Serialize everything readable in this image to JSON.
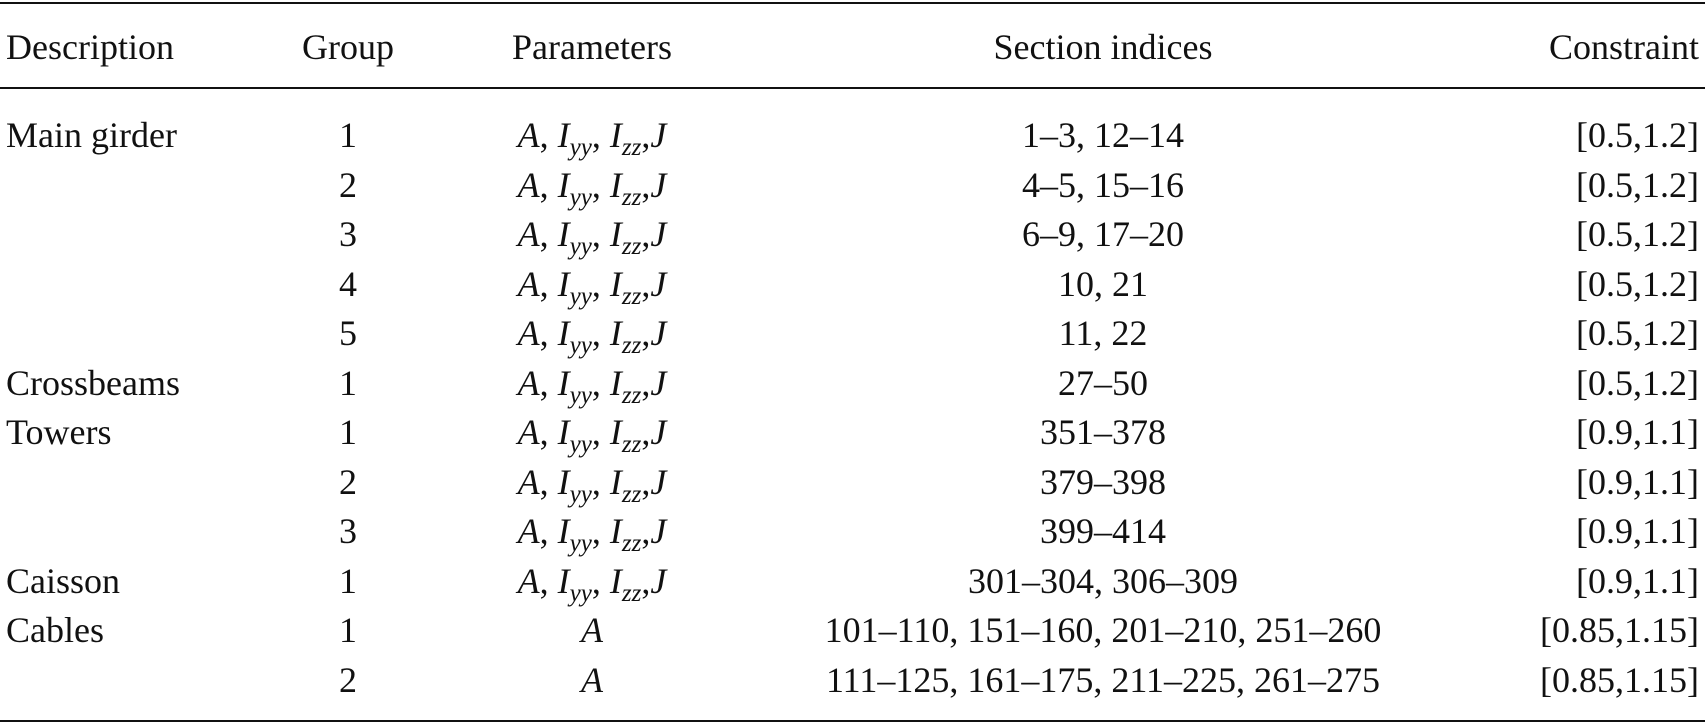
{
  "table": {
    "header": [
      "Description",
      "Group",
      "Parameters",
      "Section indices",
      "Constraint"
    ],
    "rows": [
      {
        "description": "Main girder",
        "group": 1,
        "parameters": [
          {
            "symbol": "A"
          },
          {
            "symbol": "I",
            "subscript": "yy"
          },
          {
            "symbol": "I",
            "subscript": "zz"
          },
          {
            "symbol": "J"
          }
        ],
        "sections": "1–3, 12–14",
        "constraint": "[0.5,1.2]"
      },
      {
        "group": 2,
        "parameters": [
          {
            "symbol": "A"
          },
          {
            "symbol": "I",
            "subscript": "yy"
          },
          {
            "symbol": "I",
            "subscript": "zz"
          },
          {
            "symbol": "J"
          }
        ],
        "sections": "4–5, 15–16",
        "constraint": "[0.5,1.2]"
      },
      {
        "group": 3,
        "parameters": [
          {
            "symbol": "A"
          },
          {
            "symbol": "I",
            "subscript": "yy"
          },
          {
            "symbol": "I",
            "subscript": "zz"
          },
          {
            "symbol": "J"
          }
        ],
        "sections": "6–9, 17–20",
        "constraint": "[0.5,1.2]"
      },
      {
        "group": 4,
        "parameters": [
          {
            "symbol": "A"
          },
          {
            "symbol": "I",
            "subscript": "yy"
          },
          {
            "symbol": "I",
            "subscript": "zz"
          },
          {
            "symbol": "J"
          }
        ],
        "sections": "10, 21",
        "constraint": "[0.5,1.2]"
      },
      {
        "group": 5,
        "parameters": [
          {
            "symbol": "A"
          },
          {
            "symbol": "I",
            "subscript": "yy"
          },
          {
            "symbol": "I",
            "subscript": "zz"
          },
          {
            "symbol": "J"
          }
        ],
        "sections": "11, 22",
        "constraint": "[0.5,1.2]"
      },
      {
        "description": "Crossbeams",
        "group": 1,
        "parameters": [
          {
            "symbol": "A"
          },
          {
            "symbol": "I",
            "subscript": "yy"
          },
          {
            "symbol": "I",
            "subscript": "zz"
          },
          {
            "symbol": "J"
          }
        ],
        "sections": "27–50",
        "constraint": "[0.5,1.2]"
      },
      {
        "description": "Towers",
        "group": 1,
        "parameters": [
          {
            "symbol": "A"
          },
          {
            "symbol": "I",
            "subscript": "yy"
          },
          {
            "symbol": "I",
            "subscript": "zz"
          },
          {
            "symbol": "J"
          }
        ],
        "sections": "351–378",
        "constraint": "[0.9,1.1]"
      },
      {
        "group": 2,
        "parameters": [
          {
            "symbol": "A"
          },
          {
            "symbol": "I",
            "subscript": "yy"
          },
          {
            "symbol": "I",
            "subscript": "zz"
          },
          {
            "symbol": "J"
          }
        ],
        "sections": "379–398",
        "constraint": "[0.9,1.1]"
      },
      {
        "group": 3,
        "parameters": [
          {
            "symbol": "A"
          },
          {
            "symbol": "I",
            "subscript": "yy"
          },
          {
            "symbol": "I",
            "subscript": "zz"
          },
          {
            "symbol": "J"
          }
        ],
        "sections": "399–414",
        "constraint": "[0.9,1.1]"
      },
      {
        "description": "Caisson",
        "group": 1,
        "parameters": [
          {
            "symbol": "A"
          },
          {
            "symbol": "I",
            "subscript": "yy"
          },
          {
            "symbol": "I",
            "subscript": "zz"
          },
          {
            "symbol": "J"
          }
        ],
        "sections": "301–304, 306–309",
        "constraint": "[0.9,1.1]"
      },
      {
        "description": "Cables",
        "group": 1,
        "parameters": [
          {
            "symbol": "A"
          }
        ],
        "sections": "101–110, 151–160, 201–210, 251–260",
        "constraint": "[0.85,1.15]"
      },
      {
        "group": 2,
        "parameters": [
          {
            "symbol": "A"
          }
        ],
        "sections": "111–125, 161–175, 211–225, 261–275",
        "constraint": "[0.85,1.15]"
      }
    ]
  }
}
